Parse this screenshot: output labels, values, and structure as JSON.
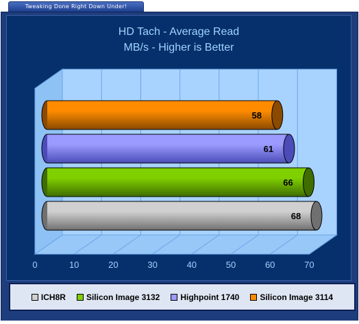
{
  "banner": {
    "text": "Tweaking Done Right Down Under!"
  },
  "colors": {
    "frame": "#1e3d7c",
    "plot_area": "#06306b",
    "title_text": "#9fd3ff",
    "wall": "#a9d3ff",
    "grid": "#6aa4e6",
    "axis_text": "#9fd3ff"
  },
  "chart_data": {
    "type": "bar",
    "orientation": "horizontal",
    "style": "3d-cylinder",
    "title": "HD Tach - Average Read",
    "subtitle": "MB/s - Higher is Better",
    "xlim": [
      0,
      70
    ],
    "x_ticks": [
      "0",
      "10",
      "20",
      "30",
      "40",
      "50",
      "60",
      "70"
    ],
    "grid": "vertical",
    "legend_position": "bottom",
    "series": [
      {
        "name": "Silicon Image 3114",
        "value": 58,
        "label": "58",
        "color": "#ff8c00",
        "dark": "#8a4a00"
      },
      {
        "name": "Highpoint 1740",
        "value": 61,
        "label": "61",
        "color": "#9b9bff",
        "dark": "#4c4cb8"
      },
      {
        "name": "Silicon Image 3132",
        "value": 66,
        "label": "66",
        "color": "#80d000",
        "dark": "#3f6d00"
      },
      {
        "name": "ICH8R",
        "value": 68,
        "label": "68",
        "color": "#d0d0d0",
        "dark": "#707070"
      }
    ],
    "legend": [
      {
        "label": "ICH8R",
        "color": "#d0d0d0"
      },
      {
        "label": "Silicon Image 3132",
        "color": "#80d000"
      },
      {
        "label": "Highpoint 1740",
        "color": "#9b9bff"
      },
      {
        "label": "Silicon Image 3114",
        "color": "#ff8c00"
      }
    ]
  }
}
